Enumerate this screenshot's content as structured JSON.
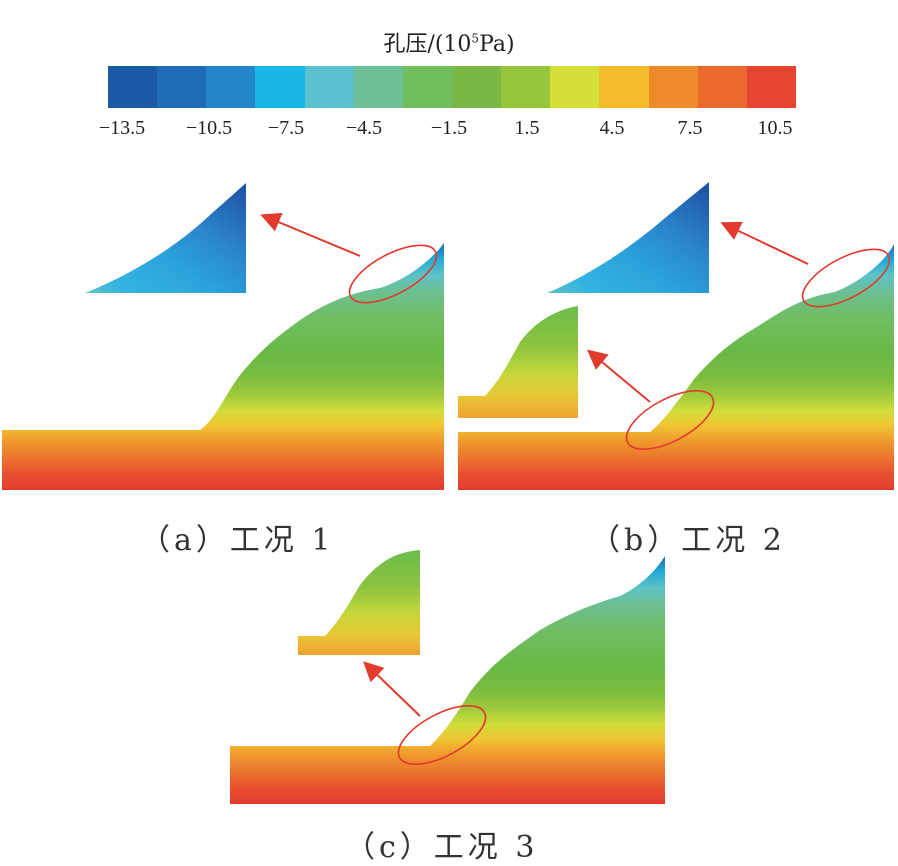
{
  "legend": {
    "title_main": "孔压/(10",
    "title_sup": "5",
    "title_end": "Pa)",
    "tick_labels": [
      "−13.5",
      "−10.5",
      "−7.5",
      "−4.5",
      "−1.5",
      "1.5",
      "4.5",
      "7.5",
      "10.5"
    ],
    "colors": [
      "#1a5aa6",
      "#1d6cb5",
      "#2286c8",
      "#17b8e6",
      "#5cc1cf",
      "#6dbf95",
      "#71bf5c",
      "#7ab845",
      "#95c63c",
      "#d4df3a",
      "#f4bb2d",
      "#ee8a2a",
      "#ea6a2e",
      "#e64630"
    ]
  },
  "captions": {
    "a": "（a）工况 1",
    "b": "（b）工况 2",
    "c": "（c）工况 3"
  }
}
